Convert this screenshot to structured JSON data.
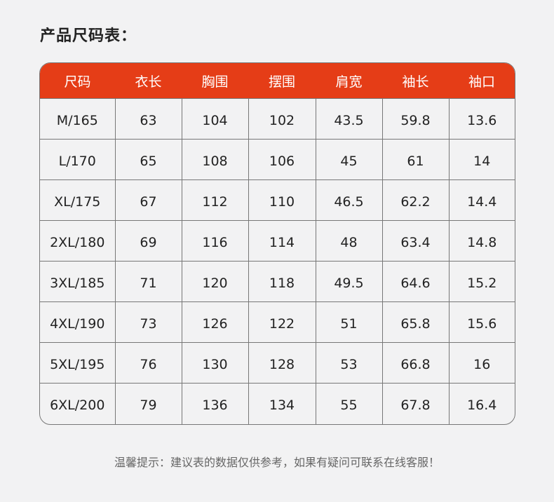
{
  "title": "产品尺码表：",
  "colors": {
    "header": "#e53d17",
    "background": "#f2f2f3",
    "border": "#777777"
  },
  "table": {
    "headers": [
      "尺码",
      "衣长",
      "胸围",
      "摆围",
      "肩宽",
      "袖长",
      "袖口"
    ],
    "rows": [
      [
        "M/165",
        "63",
        "104",
        "102",
        "43.5",
        "59.8",
        "13.6"
      ],
      [
        "L/170",
        "65",
        "108",
        "106",
        "45",
        "61",
        "14"
      ],
      [
        "XL/175",
        "67",
        "112",
        "110",
        "46.5",
        "62.2",
        "14.4"
      ],
      [
        "2XL/180",
        "69",
        "116",
        "114",
        "48",
        "63.4",
        "14.8"
      ],
      [
        "3XL/185",
        "71",
        "120",
        "118",
        "49.5",
        "64.6",
        "15.2"
      ],
      [
        "4XL/190",
        "73",
        "126",
        "122",
        "51",
        "65.8",
        "15.6"
      ],
      [
        "5XL/195",
        "76",
        "130",
        "128",
        "53",
        "66.8",
        "16"
      ],
      [
        "6XL/200",
        "79",
        "136",
        "134",
        "55",
        "67.8",
        "16.4"
      ]
    ]
  },
  "note": "温馨提示：建议表的数据仅供参考，如果有疑问可联系在线客服！"
}
